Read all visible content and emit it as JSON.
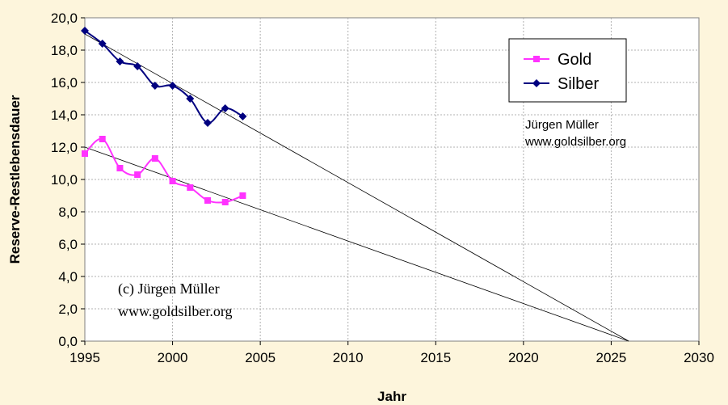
{
  "chart_data": {
    "type": "line",
    "xlabel": "Jahr",
    "ylabel": "Reserve-Restlebensdauer",
    "xlim": [
      1995,
      2030
    ],
    "ylim": [
      0,
      20
    ],
    "x_ticks": [
      "1995",
      "2000",
      "2005",
      "2010",
      "2015",
      "2020",
      "2025",
      "2030"
    ],
    "y_ticks": [
      "0,0",
      "2,0",
      "4,0",
      "6,0",
      "8,0",
      "10,0",
      "12,0",
      "14,0",
      "16,0",
      "18,0",
      "20,0"
    ],
    "grid": true,
    "legend_position": "top-right",
    "series": [
      {
        "name": "Gold",
        "color": "#ff33ff",
        "marker": "square",
        "x": [
          1995,
          1996,
          1997,
          1998,
          1999,
          2000,
          2001,
          2002,
          2003,
          2004
        ],
        "values": [
          11.6,
          12.5,
          10.7,
          10.3,
          11.3,
          9.9,
          9.5,
          8.7,
          8.6,
          9.0
        ]
      },
      {
        "name": "Silber",
        "color": "#000080",
        "marker": "diamond",
        "x": [
          1995,
          1996,
          1997,
          1998,
          1999,
          2000,
          2001,
          2002,
          2003,
          2004
        ],
        "values": [
          19.2,
          18.4,
          17.3,
          17.0,
          15.8,
          15.8,
          15.0,
          13.5,
          14.4,
          13.9
        ]
      }
    ],
    "trendlines": [
      {
        "x": [
          1995,
          2026
        ],
        "values": [
          12.0,
          0
        ]
      },
      {
        "x": [
          1995,
          2026
        ],
        "values": [
          19.0,
          0
        ]
      }
    ],
    "annotations": [
      {
        "lines": [
          "Jürgen Müller",
          "www.goldsilber.org"
        ]
      },
      {
        "lines": [
          "(c) Jürgen Müller",
          "www.goldsilber.org"
        ]
      }
    ]
  }
}
